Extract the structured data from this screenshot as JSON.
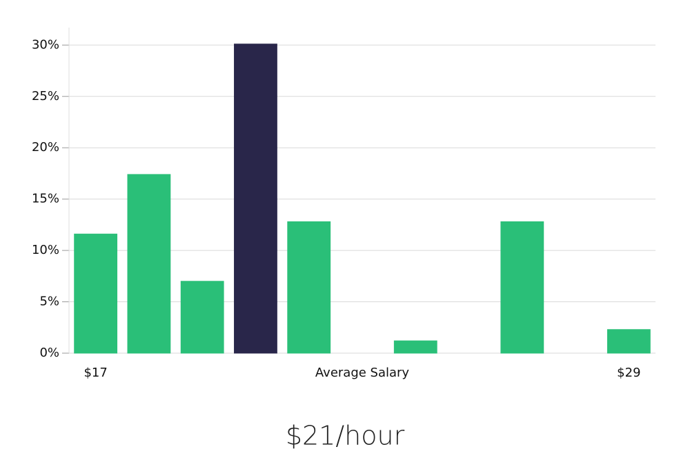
{
  "chart_data": {
    "type": "bar",
    "categories": [
      "$17",
      null,
      null,
      null,
      null,
      null,
      null,
      null,
      null,
      null,
      "$29"
    ],
    "x_label": "Average Salary",
    "values": [
      11.6,
      17.4,
      7.0,
      30.1,
      12.8,
      0,
      1.2,
      0,
      12.8,
      0,
      2.3
    ],
    "colors": [
      "#2abf78",
      "#2abf78",
      "#2abf78",
      "#29264a",
      "#2abf78",
      "#2abf78",
      "#2abf78",
      "#2abf78",
      "#2abf78",
      "#2abf78",
      "#2abf78"
    ],
    "ylim": [
      0,
      31.7
    ],
    "yticks": [
      {
        "value": 0,
        "label": "0%"
      },
      {
        "value": 5,
        "label": "5%"
      },
      {
        "value": 10,
        "label": "10%"
      },
      {
        "value": 15,
        "label": "15%"
      },
      {
        "value": 20,
        "label": "20%"
      },
      {
        "value": 25,
        "label": "25%"
      },
      {
        "value": 30,
        "label": "30%"
      }
    ],
    "grid": true,
    "summary": "$21/hour"
  }
}
